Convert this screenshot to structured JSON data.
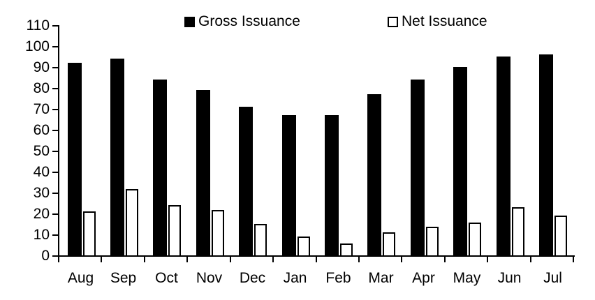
{
  "chart_data": {
    "type": "bar",
    "title": "",
    "xlabel": "",
    "ylabel": "",
    "categories": [
      "Aug",
      "Sep",
      "Oct",
      "Nov",
      "Dec",
      "Jan",
      "Feb",
      "Mar",
      "Apr",
      "May",
      "Jun",
      "Jul"
    ],
    "series": [
      {
        "name": "Gross Issuance",
        "style": "filled",
        "fill": "#000000",
        "values": [
          92,
          94,
          84,
          79,
          71,
          67,
          67,
          77,
          84,
          90,
          95,
          96
        ]
      },
      {
        "name": "Net Issuance",
        "style": "outlined",
        "fill": "#ffffff",
        "stroke": "#000000",
        "values": [
          21,
          31.5,
          24,
          21.5,
          15,
          9,
          5.5,
          11,
          13.5,
          15.5,
          23,
          19
        ]
      }
    ],
    "ylim": [
      0,
      110
    ],
    "yticks": [
      0,
      10,
      20,
      30,
      40,
      50,
      60,
      70,
      80,
      90,
      100,
      110
    ],
    "grid": false,
    "legend_position": "top",
    "axis_color": "#000000",
    "background_color": "#ffffff"
  }
}
